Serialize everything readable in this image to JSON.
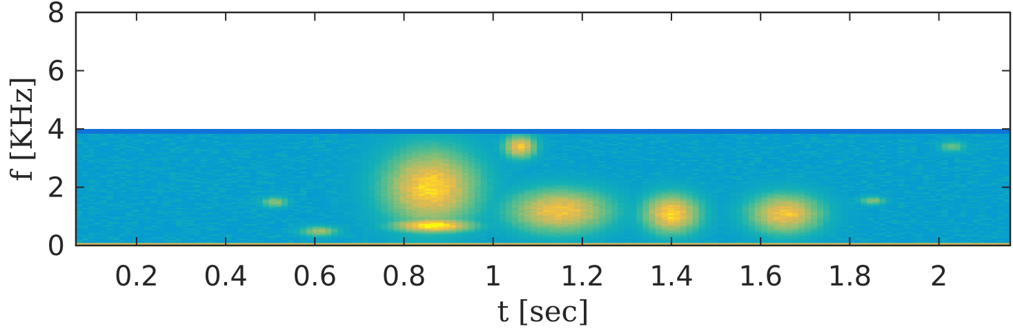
{
  "chart_data": {
    "type": "heatmap",
    "title": "",
    "xlabel": "t [sec]",
    "ylabel": "f [KHz]",
    "xlim": [
      0.064,
      2.16
    ],
    "ylim": [
      0,
      8
    ],
    "xticks": [
      0.2,
      0.4,
      0.6,
      0.8,
      1.0,
      1.2,
      1.4,
      1.6,
      1.8,
      2.0
    ],
    "xtick_labels": [
      "0.2",
      "0.4",
      "0.6",
      "0.8",
      "1",
      "1.2",
      "1.4",
      "1.6",
      "1.8",
      "2"
    ],
    "yticks": [
      0,
      2,
      4,
      6,
      8
    ],
    "ytick_labels": [
      "0",
      "2",
      "4",
      "6",
      "8"
    ],
    "data_fmax_khz": 4,
    "colormap": "parula",
    "grid": false,
    "colors": {
      "low": "#1f78e8",
      "mid": "#19b3b6",
      "high": "#f2b62c",
      "peak": "#f7e42a",
      "axis": "#262626"
    },
    "energy_blobs": [
      {
        "t": [
          0.48,
          0.54
        ],
        "f": [
          1.3,
          1.7
        ],
        "level": 0.55
      },
      {
        "t": [
          0.56,
          0.66
        ],
        "f": [
          0.3,
          0.7
        ],
        "level": 0.55
      },
      {
        "t": [
          0.72,
          1.0
        ],
        "f": [
          0.2,
          3.8
        ],
        "level": 0.85
      },
      {
        "t": [
          0.75,
          0.98
        ],
        "f": [
          0.4,
          1.0
        ],
        "level": 0.95
      },
      {
        "t": [
          1.02,
          1.1
        ],
        "f": [
          2.9,
          3.9
        ],
        "level": 0.8
      },
      {
        "t": [
          1.0,
          1.3
        ],
        "f": [
          0.2,
          2.2
        ],
        "level": 0.8
      },
      {
        "t": [
          1.32,
          1.48
        ],
        "f": [
          0.2,
          2.0
        ],
        "level": 0.85
      },
      {
        "t": [
          1.55,
          1.76
        ],
        "f": [
          0.2,
          2.0
        ],
        "level": 0.8
      },
      {
        "t": [
          1.82,
          1.88
        ],
        "f": [
          1.4,
          1.7
        ],
        "level": 0.5
      },
      {
        "t": [
          2.0,
          2.06
        ],
        "f": [
          3.2,
          3.6
        ],
        "level": 0.45
      }
    ]
  }
}
